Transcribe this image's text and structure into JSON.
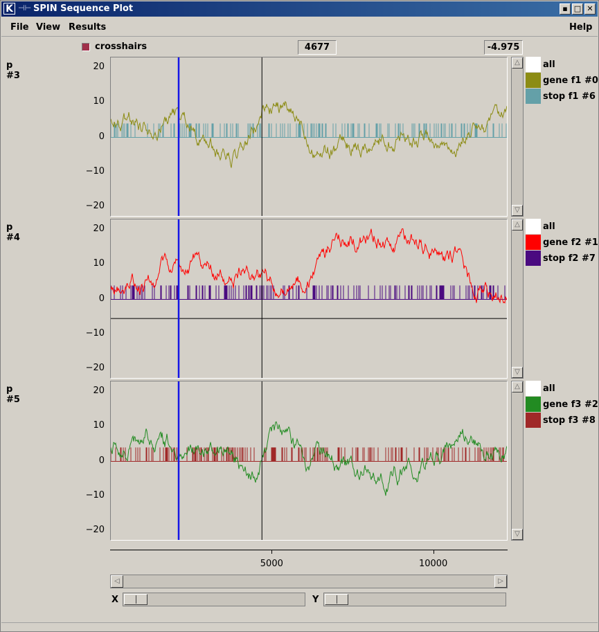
{
  "window": {
    "title": "SPIN Sequence Plot",
    "logo": "K",
    "pin_icon": "pin-icon",
    "buttons": [
      "minimize",
      "maximize",
      "close"
    ],
    "minimize_glyph": "▪",
    "maximize_glyph": "□",
    "close_glyph": "✕"
  },
  "menu": {
    "file": "File",
    "view": "View",
    "results": "Results",
    "help": "Help"
  },
  "toolbar": {
    "crosshairs_label": "crosshairs",
    "crosshairs_checked": true,
    "x_value": "4677",
    "y_value": "-4.975"
  },
  "panels": [
    {
      "label": "p #3",
      "yticks": [
        "20",
        "10",
        "0",
        "−10",
        "−20"
      ],
      "legend": [
        {
          "label": "all",
          "color": "#ffffff"
        },
        {
          "label": "gene f1 #0",
          "color": "#8c8c14"
        },
        {
          "label": "stop f1 #6",
          "color": "#64a0a8"
        }
      ],
      "has_baseline": false
    },
    {
      "label": "p #4",
      "yticks": [
        "20",
        "10",
        "0",
        "−10",
        "−20"
      ],
      "legend": [
        {
          "label": "all",
          "color": "#ffffff"
        },
        {
          "label": "gene f2 #1",
          "color": "#ff0000"
        },
        {
          "label": "stop f2 #7",
          "color": "#4a0a80"
        }
      ],
      "has_baseline": true,
      "baseline_value": -5.5
    },
    {
      "label": "p #5",
      "yticks": [
        "20",
        "10",
        "0",
        "−10",
        "−20"
      ],
      "legend": [
        {
          "label": "all",
          "color": "#ffffff"
        },
        {
          "label": "gene f3 #2",
          "color": "#228b22"
        },
        {
          "label": "stop f3 #8",
          "color": "#a02828"
        }
      ],
      "has_baseline": false
    }
  ],
  "chart_data": {
    "type": "line",
    "xlim": [
      0,
      12300
    ],
    "ylim": [
      -23,
      23
    ],
    "xticks": [
      "5000",
      "10000"
    ],
    "crosshair_x": 4677,
    "cursor_x": 2100
  },
  "scroll": {
    "x_label": "X",
    "y_label": "Y"
  }
}
